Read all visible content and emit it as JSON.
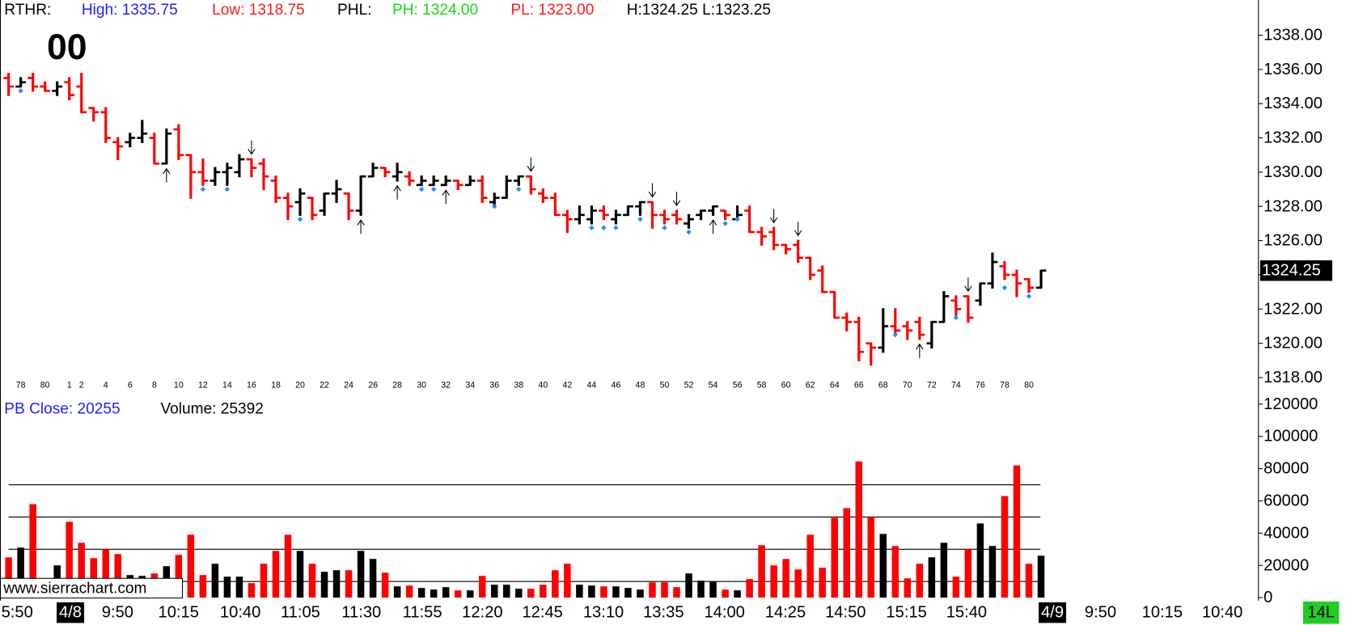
{
  "chart_data": [
    {
      "type": "ohlc",
      "header": [
        {
          "text": "RTHR:",
          "color": "#000000"
        },
        {
          "text": "High: 1335.75",
          "color": "#2222ff"
        },
        {
          "text": "Low: 1318.75",
          "color": "#ff1a1a"
        },
        {
          "text": "PHL:",
          "color": "#000000"
        },
        {
          "text": "PH: 1324.00",
          "color": "#16d816"
        },
        {
          "text": "PL: 1323.00",
          "color": "#ff1a1a"
        },
        {
          "text": "H:1324.25 L:1323.25",
          "color": "#000000"
        }
      ],
      "countdown": "00",
      "categories": [
        null,
        "78",
        null,
        "80",
        null,
        "1",
        "2",
        null,
        "4",
        null,
        "6",
        null,
        "8",
        null,
        "10",
        null,
        "12",
        null,
        "14",
        null,
        "16",
        null,
        "18",
        null,
        "20",
        null,
        "22",
        null,
        "24",
        null,
        "26",
        null,
        "28",
        null,
        "30",
        null,
        "32",
        null,
        "34",
        null,
        "36",
        null,
        "38",
        null,
        "40",
        null,
        "42",
        null,
        "44",
        null,
        "46",
        null,
        "48",
        null,
        "50",
        null,
        "52",
        null,
        "54",
        null,
        "56",
        null,
        "58",
        null,
        "60",
        null,
        "62",
        null,
        "64",
        null,
        "66",
        null,
        "68",
        null,
        "70",
        null,
        "72",
        null,
        "74",
        null,
        "76",
        null,
        "78",
        null,
        "80",
        null
      ],
      "open": [
        1335.5,
        1335.0,
        1335.5,
        1335.0,
        1334.75,
        1335.25,
        1335.0,
        1333.75,
        1333.5,
        1331.75,
        1331.75,
        1332.0,
        1332.0,
        1330.5,
        1332.5,
        1331.0,
        1330.0,
        1329.5,
        1330.0,
        1330.0,
        1330.75,
        1330.5,
        1329.5,
        1328.5,
        1328.25,
        1328.5,
        1327.75,
        1328.75,
        1328.75,
        1327.75,
        1329.75,
        1330.25,
        1329.75,
        1329.75,
        1329.25,
        1329.25,
        1329.25,
        1329.5,
        1329.25,
        1329.5,
        1328.25,
        1328.5,
        1329.5,
        1329.75,
        1328.75,
        1328.5,
        1327.5,
        1327.25,
        1327.25,
        1327.75,
        1327.25,
        1327.5,
        1328.0,
        1328.25,
        1327.5,
        1327.5,
        1327.0,
        1327.5,
        1327.75,
        1327.75,
        1327.25,
        1327.75,
        1326.5,
        1326.5,
        1325.75,
        1325.75,
        1325.0,
        1324.25,
        1323.0,
        1321.5,
        1321.25,
        1320.0,
        1319.75,
        1321.0,
        1321.0,
        1321.25,
        1320.0,
        1321.25,
        1322.5,
        1322.75,
        1322.5,
        1323.5,
        1324.5,
        1324.0,
        1323.75,
        1323.25
      ],
      "high": [
        1335.75,
        1335.5,
        1335.75,
        1335.25,
        1335.25,
        1335.5,
        1335.75,
        1333.75,
        1333.75,
        1332.0,
        1332.25,
        1333.0,
        1332.25,
        1332.5,
        1332.75,
        1331.0,
        1330.75,
        1330.25,
        1330.5,
        1331.0,
        1330.75,
        1330.75,
        1329.75,
        1328.75,
        1329.0,
        1328.5,
        1328.75,
        1329.5,
        1328.75,
        1329.75,
        1330.5,
        1330.25,
        1330.5,
        1330.0,
        1329.75,
        1329.75,
        1329.75,
        1329.5,
        1329.75,
        1329.75,
        1328.75,
        1329.75,
        1329.75,
        1329.75,
        1329.0,
        1328.75,
        1327.75,
        1328.0,
        1328.0,
        1328.0,
        1327.75,
        1328.0,
        1328.25,
        1328.25,
        1327.75,
        1327.75,
        1327.5,
        1327.75,
        1328.0,
        1327.75,
        1328.0,
        1328.0,
        1326.75,
        1326.75,
        1325.75,
        1326.0,
        1325.0,
        1324.5,
        1323.0,
        1321.75,
        1321.5,
        1320.0,
        1322.0,
        1322.0,
        1321.25,
        1321.5,
        1321.25,
        1323.0,
        1322.75,
        1322.75,
        1323.5,
        1325.25,
        1324.75,
        1324.25,
        1323.75,
        1324.25
      ],
      "low": [
        1334.5,
        1335.0,
        1334.75,
        1334.75,
        1334.5,
        1334.25,
        1333.5,
        1333.0,
        1331.75,
        1330.75,
        1331.5,
        1331.75,
        1330.5,
        1330.5,
        1330.75,
        1328.5,
        1329.25,
        1329.25,
        1329.25,
        1329.75,
        1329.75,
        1329.0,
        1328.25,
        1327.25,
        1327.5,
        1327.25,
        1327.5,
        1328.25,
        1327.25,
        1327.5,
        1329.75,
        1329.75,
        1329.5,
        1329.25,
        1329.25,
        1329.25,
        1329.25,
        1329.0,
        1329.25,
        1328.25,
        1328.0,
        1328.5,
        1329.25,
        1328.75,
        1328.25,
        1327.5,
        1326.5,
        1327.0,
        1327.0,
        1327.25,
        1327.0,
        1327.5,
        1327.5,
        1326.75,
        1327.0,
        1327.0,
        1326.75,
        1327.25,
        1327.5,
        1327.25,
        1327.25,
        1326.5,
        1325.75,
        1325.5,
        1325.25,
        1324.75,
        1323.75,
        1323.0,
        1321.5,
        1320.75,
        1319.0,
        1318.75,
        1319.5,
        1320.5,
        1320.25,
        1320.25,
        1319.75,
        1321.25,
        1321.5,
        1321.25,
        1322.25,
        1323.25,
        1323.75,
        1322.75,
        1323.0,
        1323.25
      ],
      "close": [
        1335.0,
        1335.25,
        1335.0,
        1334.75,
        1335.0,
        1334.5,
        1333.5,
        1333.5,
        1332.0,
        1331.5,
        1332.0,
        1332.25,
        1330.5,
        1332.25,
        1331.0,
        1330.0,
        1329.5,
        1330.0,
        1330.25,
        1330.75,
        1330.25,
        1329.75,
        1328.5,
        1328.0,
        1328.75,
        1327.5,
        1328.75,
        1329.0,
        1327.75,
        1329.75,
        1330.25,
        1330.0,
        1330.0,
        1329.5,
        1329.5,
        1329.5,
        1329.5,
        1329.25,
        1329.5,
        1328.5,
        1328.5,
        1329.5,
        1329.75,
        1329.0,
        1328.5,
        1327.5,
        1327.25,
        1327.5,
        1327.75,
        1327.5,
        1327.5,
        1328.0,
        1328.25,
        1327.5,
        1327.25,
        1327.25,
        1327.25,
        1327.75,
        1328.0,
        1327.5,
        1327.5,
        1326.5,
        1326.25,
        1325.75,
        1325.5,
        1325.0,
        1324.0,
        1323.0,
        1321.5,
        1321.25,
        1319.5,
        1319.75,
        1321.0,
        1320.75,
        1320.75,
        1320.5,
        1321.25,
        1322.75,
        1322.0,
        1321.5,
        1323.5,
        1324.75,
        1324.0,
        1323.5,
        1323.25,
        1324.25
      ],
      "up_color": "#000000",
      "down_color": "#ff0000",
      "dots": {
        "color": "#1e8fff",
        "bars": [
          1,
          16,
          18,
          24,
          34,
          35,
          40,
          42,
          48,
          49,
          50,
          52,
          54,
          56,
          59,
          60,
          73,
          78,
          82,
          84
        ],
        "values": [
          1334.75,
          1329.0,
          1329.0,
          1327.25,
          1329.0,
          1329.0,
          1328.0,
          1329.0,
          1326.75,
          1326.75,
          1326.75,
          1327.25,
          1326.75,
          1326.5,
          1327.0,
          1327.25,
          1320.5,
          1321.5,
          1323.25,
          1322.75
        ]
      },
      "arrows_up": [
        13,
        29,
        32,
        36,
        58,
        75
      ],
      "arrows_down": [
        20,
        43,
        53,
        55,
        63,
        65,
        79
      ],
      "ylim": [
        1317,
        1340
      ],
      "yticks": [
        {
          "value": 1318,
          "label": "1318.00"
        },
        {
          "value": 1320,
          "label": "1320.00"
        },
        {
          "value": 1322,
          "label": "1322.00"
        },
        {
          "value": 1324,
          "label": "1324.00"
        },
        {
          "value": 1326,
          "label": "1326.00"
        },
        {
          "value": 1328,
          "label": "1328.00"
        },
        {
          "value": 1330,
          "label": "1330.00"
        },
        {
          "value": 1332,
          "label": "1332.00"
        },
        {
          "value": 1334,
          "label": "1334.00"
        },
        {
          "value": 1336,
          "label": "1336.00"
        },
        {
          "value": 1338,
          "label": "1338.00"
        }
      ],
      "last_price": 1324.25
    },
    {
      "type": "bar",
      "header": [
        {
          "text": "PB Close: 20255",
          "color": "#2222ff"
        },
        {
          "text": "Volume: 25392",
          "color": "#000000"
        }
      ],
      "values": [
        25000,
        31000,
        58000,
        null,
        20000,
        47000,
        34000,
        24500,
        30000,
        27000,
        14000,
        13500,
        15000,
        19500,
        26500,
        39000,
        14000,
        21000,
        13000,
        13000,
        9000,
        21000,
        29000,
        39000,
        29000,
        21000,
        16000,
        17000,
        17000,
        29000,
        24000,
        15500,
        7000,
        7500,
        6000,
        5000,
        6500,
        4500,
        4500,
        13500,
        8000,
        8000,
        5500,
        5500,
        8000,
        17000,
        21000,
        8000,
        7500,
        7000,
        7000,
        6000,
        5000,
        9500,
        9500,
        6500,
        15000,
        10500,
        10000,
        5000,
        4500,
        11500,
        32500,
        20000,
        24000,
        17500,
        39000,
        18500,
        49500,
        55500,
        84500,
        50000,
        39500,
        32000,
        12000,
        21000,
        25000,
        34000,
        13000,
        30000,
        46000,
        32000,
        63000,
        82000,
        21000,
        26000
      ],
      "ylim": [
        0,
        125000
      ],
      "yticks": [
        0,
        20000,
        40000,
        60000,
        80000,
        100000,
        120000
      ],
      "hlines": [
        10000,
        30000,
        50000,
        70000
      ],
      "x_labels": [
        "5:50",
        "4/8",
        "9:50",
        "10:15",
        "10:40",
        "11:05",
        "11:30",
        "11:55",
        "12:20",
        "12:45",
        "13:10",
        "13:35",
        "14:00",
        "14:25",
        "14:50",
        "15:15",
        "15:40",
        "4/9",
        "9:50",
        "10:15",
        "10:40"
      ],
      "x_label_boxes": [
        1,
        17
      ],
      "watermark": "www.sierrachart.com",
      "badge": "14L",
      "badge_color": "#22cc22"
    }
  ]
}
